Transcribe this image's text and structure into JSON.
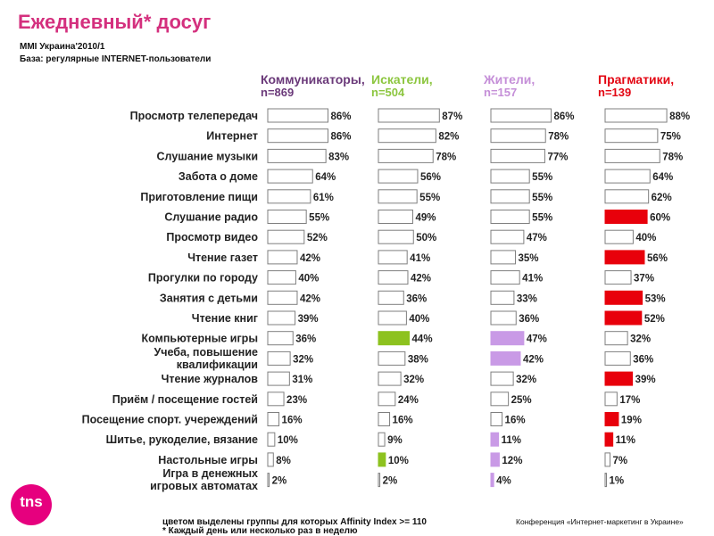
{
  "header": {
    "title": "Ежедневный* досуг",
    "source": "MMI Украина'2010/1",
    "base": "База: регулярные INTERNET-пользователи"
  },
  "footer": {
    "affinity_note": "цветом выделены группы для которых Affinity Index >= 110",
    "daily_note": "* Каждый день или несколько раз в неделю",
    "conference": "Конференция «Интернет-маркетинг в Украине»",
    "logo_text": "tns"
  },
  "colors": {
    "title": "#d4307e",
    "bar_outline": "#7f7f7f",
    "logo": "#e6007e"
  },
  "chart_data": {
    "type": "bar",
    "orientation": "horizontal",
    "unit": "%",
    "xlim": [
      0,
      100
    ],
    "categories": [
      "Просмотр телепередач",
      "Интернет",
      "Слушание музыки",
      "Забота о доме",
      "Приготовление пищи",
      "Слушание радио",
      "Просмотр видео",
      "Чтение газет",
      "Прогулки по городу",
      "Занятия с детьми",
      "Чтение книг",
      "Компьютерные игры",
      "Учеба, повышение квалификации",
      "Чтение журналов",
      "Приём / посещение гостей",
      "Посещение спорт. учереждений",
      "Шитье, рукоделие, вязание",
      "Настольные игры",
      "Игра в денежных игровых автоматах"
    ],
    "series": [
      {
        "name": "Коммуникаторы,",
        "n_label": "n=869",
        "color": "#6b3a7a",
        "highlight_color": "#6b3a7a",
        "values": [
          86,
          86,
          83,
          64,
          61,
          55,
          52,
          42,
          40,
          42,
          39,
          36,
          32,
          31,
          23,
          16,
          10,
          8,
          2
        ],
        "highlighted": []
      },
      {
        "name": "Искатели,",
        "n_label": "n=504",
        "color": "#8cc63f",
        "highlight_color": "#8dc21f",
        "values": [
          87,
          82,
          78,
          56,
          55,
          49,
          50,
          41,
          42,
          36,
          40,
          44,
          38,
          32,
          24,
          16,
          9,
          10,
          2
        ],
        "highlighted": [
          11,
          17
        ]
      },
      {
        "name": "Жители,",
        "n_label": "n=157",
        "color": "#c58fd8",
        "highlight_color": "#c99ae6",
        "values": [
          86,
          78,
          77,
          55,
          55,
          55,
          47,
          35,
          41,
          33,
          36,
          47,
          42,
          32,
          25,
          16,
          11,
          12,
          4
        ],
        "highlighted": [
          11,
          12,
          16,
          17,
          18
        ]
      },
      {
        "name": "Прагматики,",
        "n_label": "n=139",
        "color": "#e30613",
        "highlight_color": "#e8000b",
        "values": [
          88,
          75,
          78,
          64,
          62,
          60,
          40,
          56,
          37,
          53,
          52,
          32,
          36,
          39,
          17,
          19,
          11,
          7,
          1
        ],
        "highlighted": [
          5,
          7,
          9,
          10,
          13,
          15,
          16
        ]
      }
    ]
  }
}
